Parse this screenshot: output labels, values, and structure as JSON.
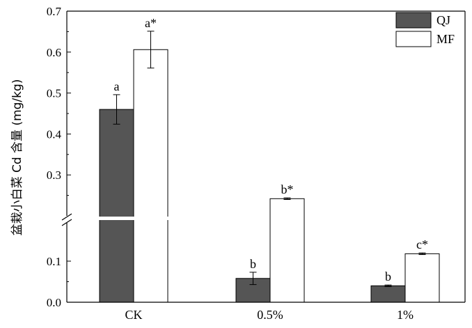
{
  "chart_data": {
    "type": "bar",
    "title": "",
    "xlabel": "",
    "ylabel": "盆栽小白菜 Cd 含量 (mg/kg)",
    "categories": [
      "CK",
      "0.5%",
      "1%"
    ],
    "ylim": [
      0,
      0.7
    ],
    "y_axis_break": [
      0.15,
      0.2
    ],
    "y_ticks": [
      "0.0",
      "0.1",
      "0.2",
      "0.3",
      "0.4",
      "0.5",
      "0.6",
      "0.7"
    ],
    "legend_position": "top-right",
    "series": [
      {
        "name": "QJ",
        "color": "#555555",
        "values": [
          0.46,
          0.058,
          0.04
        ],
        "errors": [
          0.036,
          0.015,
          0.002
        ],
        "labels": [
          "a",
          "b",
          "b"
        ]
      },
      {
        "name": "MF",
        "color": "#ffffff",
        "values": [
          0.606,
          0.242,
          0.118
        ],
        "errors": [
          0.045,
          0.002,
          0.002
        ],
        "labels": [
          "a*",
          "b*",
          "c*"
        ]
      }
    ]
  }
}
